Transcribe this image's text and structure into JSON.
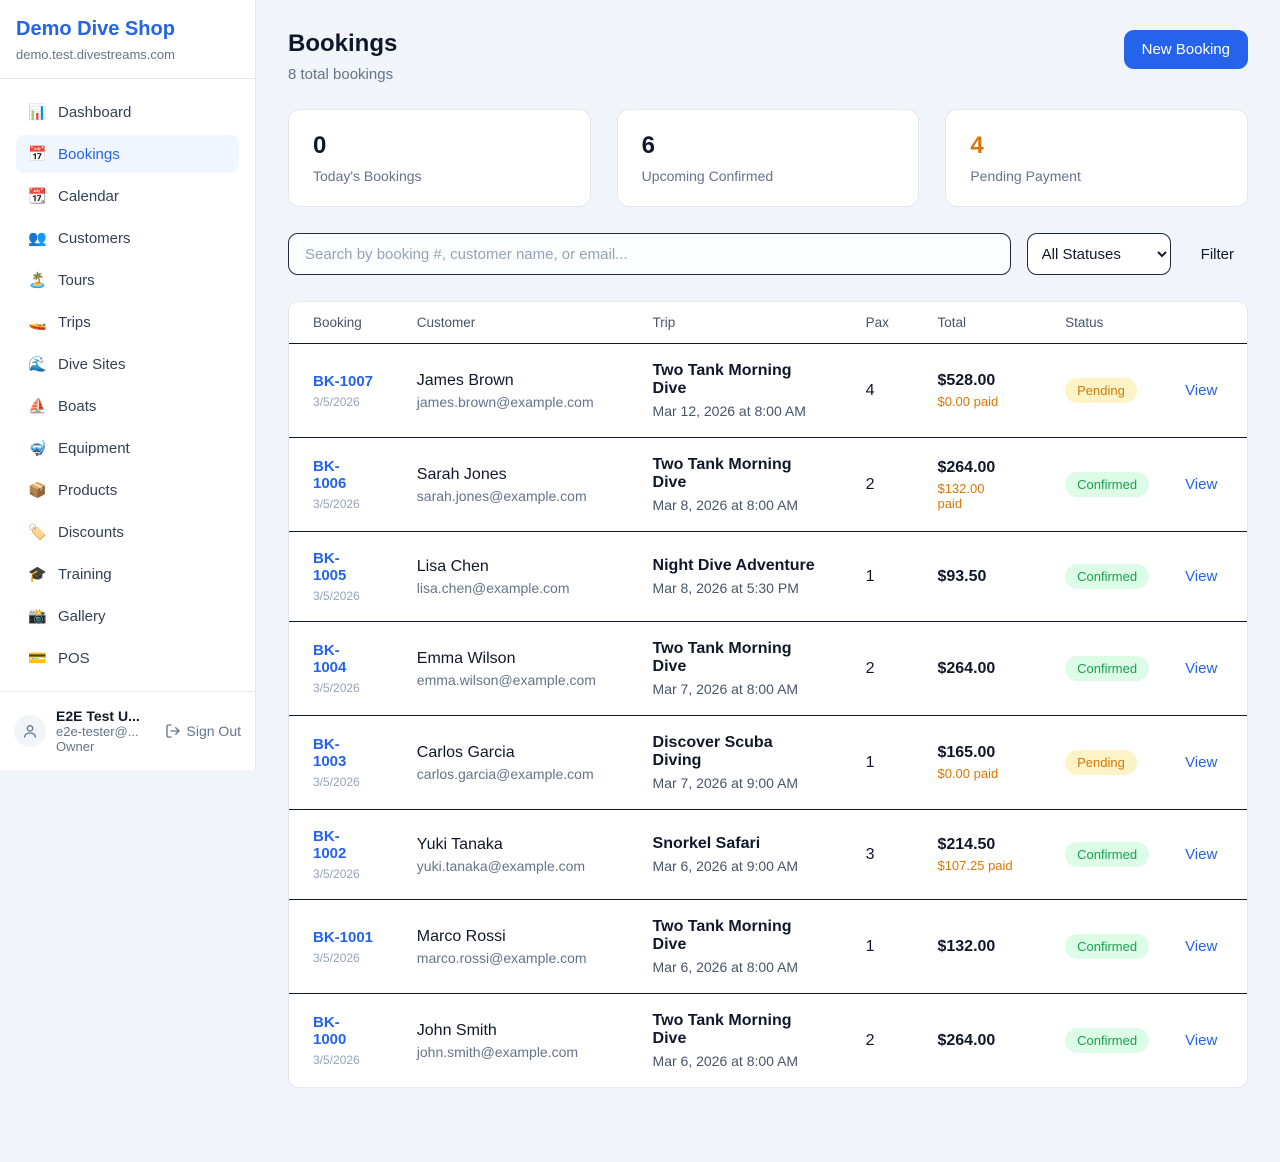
{
  "colors": {
    "accent": "#2563eb",
    "pending_text": "#d97706",
    "pending_bg": "#fef3c7",
    "confirmed_text": "#16a34a",
    "confirmed_bg": "#dcfce7"
  },
  "sidebar": {
    "title": "Demo Dive Shop",
    "domain": "demo.test.divestreams.com",
    "items": [
      {
        "icon_name": "bar-chart-icon",
        "glyph": "📊",
        "label": "Dashboard",
        "active": false
      },
      {
        "icon_name": "calendar-icon",
        "glyph": "📅",
        "label": "Bookings",
        "active": true
      },
      {
        "icon_name": "tearoff-calendar-icon",
        "glyph": "📆",
        "label": "Calendar",
        "active": false
      },
      {
        "icon_name": "people-icon",
        "glyph": "👥",
        "label": "Customers",
        "active": false
      },
      {
        "icon_name": "island-icon",
        "glyph": "🏝️",
        "label": "Tours",
        "active": false
      },
      {
        "icon_name": "speedboat-icon",
        "glyph": "🚤",
        "label": "Trips",
        "active": false
      },
      {
        "icon_name": "wave-icon",
        "glyph": "🌊",
        "label": "Dive Sites",
        "active": false
      },
      {
        "icon_name": "sailboat-icon",
        "glyph": "⛵",
        "label": "Boats",
        "active": false
      },
      {
        "icon_name": "diving-mask-icon",
        "glyph": "🤿",
        "label": "Equipment",
        "active": false
      },
      {
        "icon_name": "package-icon",
        "glyph": "📦",
        "label": "Products",
        "active": false
      },
      {
        "icon_name": "label-tag-icon",
        "glyph": "🏷️",
        "label": "Discounts",
        "active": false
      },
      {
        "icon_name": "graduation-cap-icon",
        "glyph": "🎓",
        "label": "Training",
        "active": false
      },
      {
        "icon_name": "camera-icon",
        "glyph": "📸",
        "label": "Gallery",
        "active": false
      },
      {
        "icon_name": "credit-card-icon",
        "glyph": "💳",
        "label": "POS",
        "active": false
      }
    ],
    "user": {
      "name": "E2E Test U...",
      "email": "e2e-tester@...",
      "role": "Owner",
      "sign_out_label": "Sign Out"
    }
  },
  "header": {
    "title": "Bookings",
    "subtitle": "8 total bookings",
    "new_booking_label": "New Booking"
  },
  "stats": [
    {
      "value": "0",
      "label": "Today's Bookings",
      "highlight": false
    },
    {
      "value": "6",
      "label": "Upcoming Confirmed",
      "highlight": false
    },
    {
      "value": "4",
      "label": "Pending Payment",
      "highlight": true
    }
  ],
  "toolbar": {
    "search_placeholder": "Search by booking #, customer name, or email...",
    "status_filter_value": "All Statuses",
    "filter_label": "Filter"
  },
  "table": {
    "columns": [
      "Booking",
      "Customer",
      "Trip",
      "Pax",
      "Total",
      "Status",
      ""
    ],
    "rows": [
      {
        "id": "BK-1007",
        "date": "3/5/2026",
        "name": "James Brown",
        "email": "james.brown@example.com",
        "trip": "Two Tank Morning\nDive",
        "trip_date": "Mar 12, 2026 at 8:00 AM",
        "pax": "4",
        "total": "$528.00",
        "paid": "$0.00 paid",
        "status": "Pending",
        "view": "View"
      },
      {
        "id": "BK-\n1006",
        "date": "3/5/2026",
        "name": "Sarah Jones",
        "email": "sarah.jones@example.com",
        "trip": "Two Tank Morning\nDive",
        "trip_date": "Mar 8, 2026 at 8:00 AM",
        "pax": "2",
        "total": "$264.00",
        "paid": "$132.00\npaid",
        "status": "Confirmed",
        "view": "View"
      },
      {
        "id": "BK-\n1005",
        "date": "3/5/2026",
        "name": "Lisa Chen",
        "email": "lisa.chen@example.com",
        "trip": "Night Dive Adventure",
        "trip_date": "Mar 8, 2026 at 5:30 PM",
        "pax": "1",
        "total": "$93.50",
        "paid": "",
        "status": "Confirmed",
        "view": "View"
      },
      {
        "id": "BK-\n1004",
        "date": "3/5/2026",
        "name": "Emma Wilson",
        "email": "emma.wilson@example.com",
        "trip": "Two Tank Morning\nDive",
        "trip_date": "Mar 7, 2026 at 8:00 AM",
        "pax": "2",
        "total": "$264.00",
        "paid": "",
        "status": "Confirmed",
        "view": "View"
      },
      {
        "id": "BK-\n1003",
        "date": "3/5/2026",
        "name": "Carlos Garcia",
        "email": "carlos.garcia@example.com",
        "trip": "Discover Scuba\nDiving",
        "trip_date": "Mar 7, 2026 at 9:00 AM",
        "pax": "1",
        "total": "$165.00",
        "paid": "$0.00 paid",
        "status": "Pending",
        "view": "View"
      },
      {
        "id": "BK-\n1002",
        "date": "3/5/2026",
        "name": "Yuki Tanaka",
        "email": "yuki.tanaka@example.com",
        "trip": "Snorkel Safari",
        "trip_date": "Mar 6, 2026 at 9:00 AM",
        "pax": "3",
        "total": "$214.50",
        "paid": "$107.25 paid",
        "status": "Confirmed",
        "view": "View"
      },
      {
        "id": "BK-1001",
        "date": "3/5/2026",
        "name": "Marco Rossi",
        "email": "marco.rossi@example.com",
        "trip": "Two Tank Morning\nDive",
        "trip_date": "Mar 6, 2026 at 8:00 AM",
        "pax": "1",
        "total": "$132.00",
        "paid": "",
        "status": "Confirmed",
        "view": "View"
      },
      {
        "id": "BK-\n1000",
        "date": "3/5/2026",
        "name": "John Smith",
        "email": "john.smith@example.com",
        "trip": "Two Tank Morning\nDive",
        "trip_date": "Mar 6, 2026 at 8:00 AM",
        "pax": "2",
        "total": "$264.00",
        "paid": "",
        "status": "Confirmed",
        "view": "View"
      }
    ]
  }
}
